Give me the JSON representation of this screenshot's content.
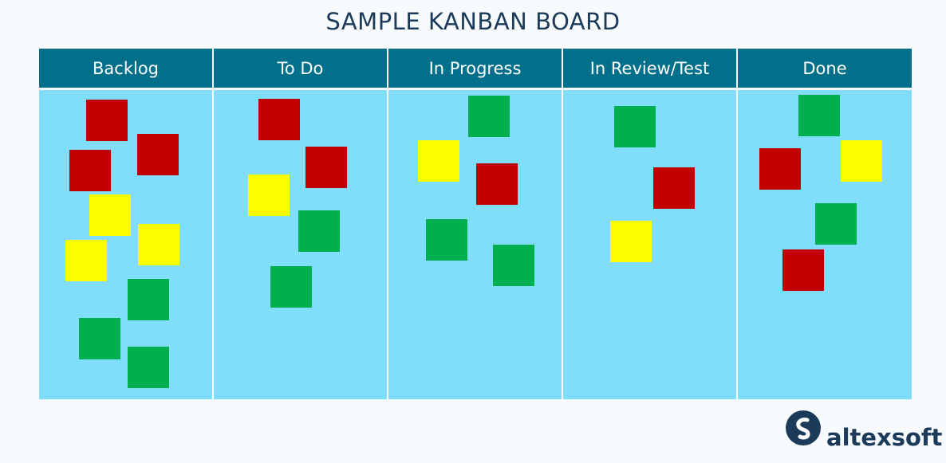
{
  "title": "SAMPLE KANBAN BOARD",
  "colors": {
    "header": "#02708b",
    "column_body": "#80ddfb",
    "red": "#c30000",
    "yellow": "#fcfe00",
    "green": "#00b04f",
    "title_text": "#1c3a5a"
  },
  "columns": [
    {
      "label": "Backlog",
      "cards": [
        "red",
        "red",
        "red",
        "yellow",
        "yellow",
        "yellow",
        "green",
        "green",
        "green"
      ]
    },
    {
      "label": "To Do",
      "cards": [
        "red",
        "red",
        "yellow",
        "green",
        "green"
      ]
    },
    {
      "label": "In Progress",
      "cards": [
        "green",
        "yellow",
        "red",
        "green",
        "green"
      ]
    },
    {
      "label": "In Review/Test",
      "cards": [
        "green",
        "red",
        "yellow"
      ]
    },
    {
      "label": "Done",
      "cards": [
        "green",
        "red",
        "yellow",
        "green",
        "red"
      ]
    }
  ],
  "logo": {
    "text": "altexsoft",
    "icon": "altexsoft-logo-icon"
  }
}
